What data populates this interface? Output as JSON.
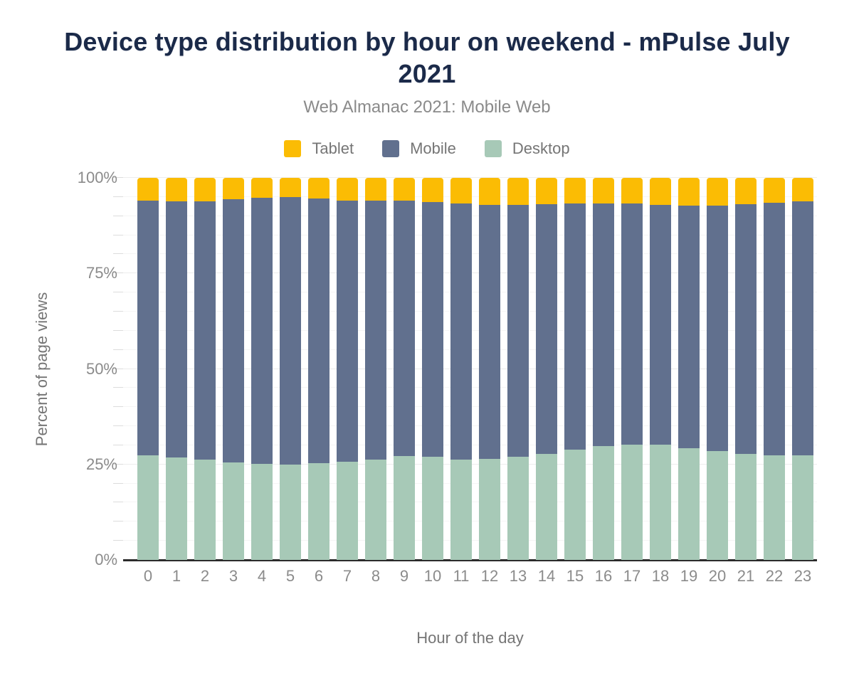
{
  "chart_data": {
    "type": "bar",
    "stacked": true,
    "title": "Device type distribution by hour on weekend - mPulse July 2021",
    "subtitle": "Web Almanac 2021: Mobile Web",
    "xlabel": "Hour of the day",
    "ylabel": "Percent of page views",
    "categories": [
      "0",
      "1",
      "2",
      "3",
      "4",
      "5",
      "6",
      "7",
      "8",
      "9",
      "10",
      "11",
      "12",
      "13",
      "14",
      "15",
      "16",
      "17",
      "18",
      "19",
      "20",
      "21",
      "22",
      "23"
    ],
    "legend_order": [
      "Tablet",
      "Mobile",
      "Desktop"
    ],
    "stack_bottom_to_top": [
      "Desktop",
      "Mobile",
      "Tablet"
    ],
    "series": [
      {
        "name": "Tablet",
        "color": "#fbbc04",
        "values": [
          6.0,
          6.2,
          6.1,
          5.6,
          5.2,
          5.0,
          5.4,
          6.0,
          6.0,
          6.0,
          6.3,
          6.7,
          7.1,
          7.1,
          6.9,
          6.7,
          6.7,
          6.7,
          7.1,
          7.3,
          7.3,
          6.9,
          6.5,
          6.1
        ]
      },
      {
        "name": "Mobile",
        "color": "#61708e",
        "values": [
          66.6,
          67.0,
          67.6,
          68.9,
          69.7,
          70.0,
          69.3,
          68.3,
          67.7,
          66.8,
          66.7,
          67.0,
          66.5,
          65.9,
          65.4,
          64.4,
          63.5,
          63.1,
          62.7,
          63.5,
          64.2,
          65.4,
          66.1,
          66.5
        ]
      },
      {
        "name": "Desktop",
        "color": "#a7c9b7",
        "values": [
          27.4,
          26.8,
          26.3,
          25.5,
          25.1,
          25.0,
          25.3,
          25.7,
          26.3,
          27.2,
          27.0,
          26.3,
          26.4,
          27.0,
          27.7,
          28.9,
          29.8,
          30.2,
          30.2,
          29.2,
          28.5,
          27.7,
          27.4,
          27.4
        ]
      }
    ],
    "ylim": [
      0,
      100
    ],
    "yticks": [
      {
        "label": "0%",
        "value": 0
      },
      {
        "label": "25%",
        "value": 25
      },
      {
        "label": "50%",
        "value": 50
      },
      {
        "label": "75%",
        "value": 75
      },
      {
        "label": "100%",
        "value": 100
      }
    ],
    "grid": {
      "horizontal_minor_step": 5,
      "horizontal_major_step": 25,
      "vertical": false
    },
    "legend_position": "top",
    "colors": {
      "title": "#1b2a49",
      "axis_text": "#8b8b8b",
      "axis_title_text": "#757575",
      "baseline": "#2b2b2b"
    }
  }
}
